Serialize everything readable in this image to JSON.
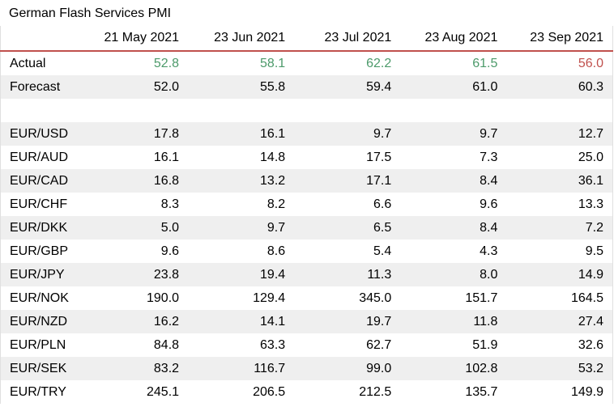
{
  "title": "German Flash Services PMI",
  "columns": [
    "",
    "21 May 2021",
    "23 Jun 2021",
    "23 Jul 2021",
    "23 Aug 2021",
    "23 Sep 2021"
  ],
  "colors": {
    "positive": "#4c9a6a",
    "negative": "#c0504d",
    "header_rule": "#c0504d",
    "stripe": "#efefef"
  },
  "actual": {
    "label": "Actual",
    "values": [
      "52.8",
      "58.1",
      "62.2",
      "61.5",
      "56.0"
    ],
    "tone": [
      "pos",
      "pos",
      "pos",
      "pos",
      "neg"
    ]
  },
  "forecast": {
    "label": "Forecast",
    "values": [
      "52.0",
      "55.8",
      "59.4",
      "61.0",
      "60.3"
    ]
  },
  "pairs": [
    {
      "label": "EUR/USD",
      "values": [
        "17.8",
        "16.1",
        "9.7",
        "9.7",
        "12.7"
      ]
    },
    {
      "label": "EUR/AUD",
      "values": [
        "16.1",
        "14.8",
        "17.5",
        "7.3",
        "25.0"
      ]
    },
    {
      "label": "EUR/CAD",
      "values": [
        "16.8",
        "13.2",
        "17.1",
        "8.4",
        "36.1"
      ]
    },
    {
      "label": "EUR/CHF",
      "values": [
        "8.3",
        "8.2",
        "6.6",
        "9.6",
        "13.3"
      ]
    },
    {
      "label": "EUR/DKK",
      "values": [
        "5.0",
        "9.7",
        "6.5",
        "8.4",
        "7.2"
      ]
    },
    {
      "label": "EUR/GBP",
      "values": [
        "9.6",
        "8.6",
        "5.4",
        "4.3",
        "9.5"
      ]
    },
    {
      "label": "EUR/JPY",
      "values": [
        "23.8",
        "19.4",
        "11.3",
        "8.0",
        "14.9"
      ]
    },
    {
      "label": "EUR/NOK",
      "values": [
        "190.0",
        "129.4",
        "345.0",
        "151.7",
        "164.5"
      ]
    },
    {
      "label": "EUR/NZD",
      "values": [
        "16.2",
        "14.1",
        "19.7",
        "11.8",
        "27.4"
      ]
    },
    {
      "label": "EUR/PLN",
      "values": [
        "84.8",
        "63.3",
        "62.7",
        "51.9",
        "32.6"
      ]
    },
    {
      "label": "EUR/SEK",
      "values": [
        "83.2",
        "116.7",
        "99.0",
        "102.8",
        "53.2"
      ]
    },
    {
      "label": "EUR/TRY",
      "values": [
        "245.1",
        "206.5",
        "212.5",
        "135.7",
        "149.9"
      ]
    }
  ]
}
